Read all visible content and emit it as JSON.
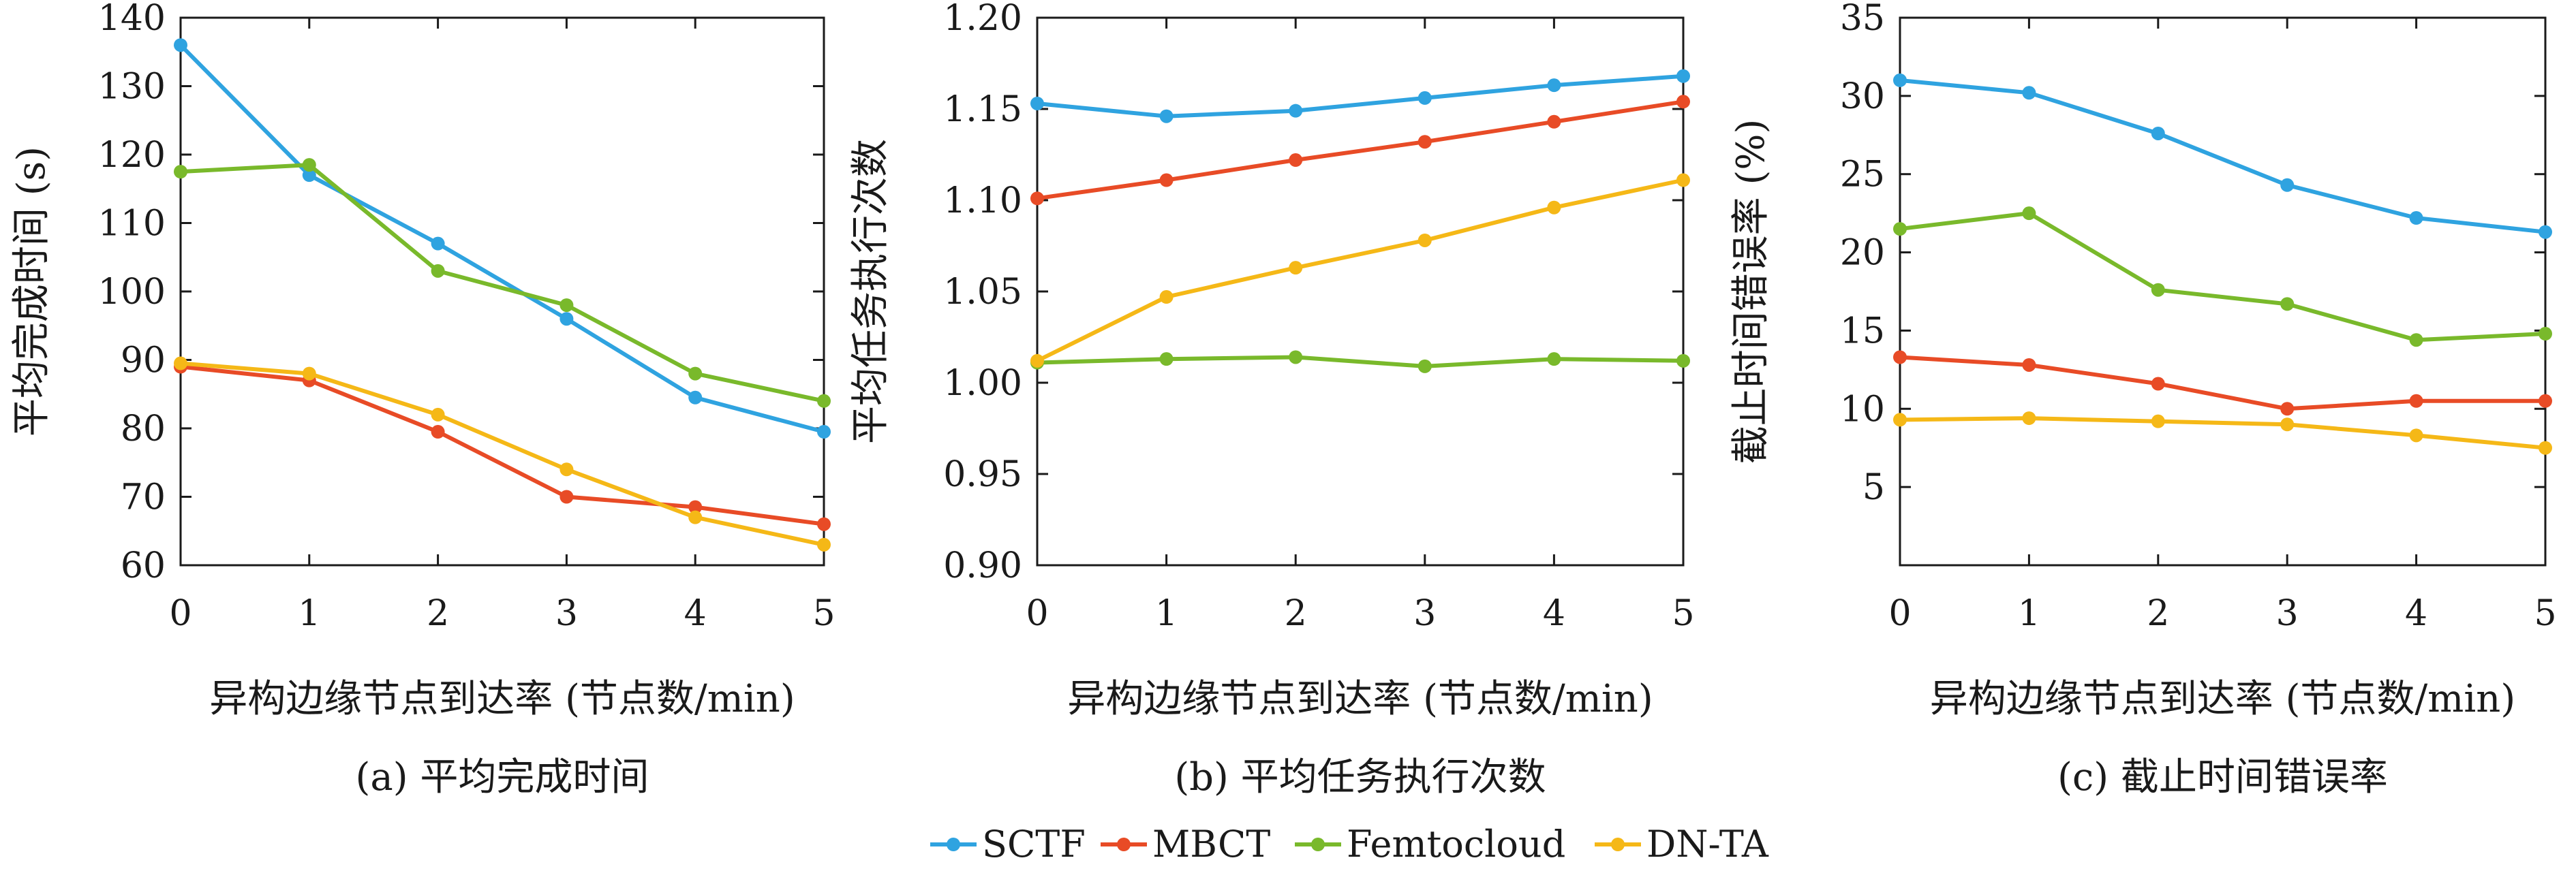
{
  "legend": [
    {
      "name": "SCTF",
      "color": "#2fa3e0"
    },
    {
      "name": "MBCT",
      "color": "#e84b26"
    },
    {
      "name": "Femtocloud",
      "color": "#79b92b"
    },
    {
      "name": "DN-TA",
      "color": "#f5b817"
    }
  ],
  "chart_data": [
    {
      "type": "line",
      "caption": "(a) 平均完成时间",
      "xlabel": "异构边缘节点到达率 (节点数/min)",
      "ylabel": "平均完成时间 (s)",
      "x": [
        0,
        1,
        2,
        3,
        4,
        5
      ],
      "xlim": [
        0,
        5
      ],
      "ylim": [
        60,
        140
      ],
      "yticks": [
        "60",
        "70",
        "80",
        "90",
        "100",
        "110",
        "120",
        "130",
        "140"
      ],
      "xticks": [
        "0",
        "1",
        "2",
        "3",
        "4",
        "5"
      ],
      "grid": false,
      "series": [
        {
          "name": "SCTF",
          "values": [
            136,
            117,
            107,
            96,
            84.5,
            79.5
          ]
        },
        {
          "name": "MBCT",
          "values": [
            89,
            87,
            79.5,
            70,
            68.5,
            66
          ]
        },
        {
          "name": "Femtocloud",
          "values": [
            117.5,
            118.5,
            103,
            98,
            88,
            84
          ]
        },
        {
          "name": "DN-TA",
          "values": [
            89.5,
            88,
            82,
            74,
            67,
            63
          ]
        }
      ]
    },
    {
      "type": "line",
      "caption": "(b) 平均任务执行次数",
      "xlabel": "异构边缘节点到达率 (节点数/min)",
      "ylabel": "平均任务执行次数",
      "x": [
        0,
        1,
        2,
        3,
        4,
        5
      ],
      "xlim": [
        0,
        5
      ],
      "ylim": [
        0.9,
        1.2
      ],
      "yticks": [
        "0.90",
        "0.95",
        "1.00",
        "1.05",
        "1.10",
        "1.15",
        "1.20"
      ],
      "xticks": [
        "0",
        "1",
        "2",
        "3",
        "4",
        "5"
      ],
      "grid": false,
      "series": [
        {
          "name": "SCTF",
          "values": [
            1.153,
            1.146,
            1.149,
            1.156,
            1.163,
            1.168
          ]
        },
        {
          "name": "MBCT",
          "values": [
            1.101,
            1.111,
            1.122,
            1.132,
            1.143,
            1.154
          ]
        },
        {
          "name": "Femtocloud",
          "values": [
            1.011,
            1.013,
            1.014,
            1.009,
            1.013,
            1.012
          ]
        },
        {
          "name": "DN-TA",
          "values": [
            1.012,
            1.047,
            1.063,
            1.078,
            1.096,
            1.111
          ]
        }
      ]
    },
    {
      "type": "line",
      "caption": "(c) 截止时间错误率",
      "xlabel": "异构边缘节点到达率 (节点数/min)",
      "ylabel": "截止时间错误率 (%)",
      "x": [
        0,
        1,
        2,
        3,
        4,
        5
      ],
      "xlim": [
        0,
        5
      ],
      "ylim": [
        0,
        35
      ],
      "yticks": [
        "5",
        "10",
        "15",
        "20",
        "25",
        "30",
        "35"
      ],
      "xticks": [
        "0",
        "1",
        "2",
        "3",
        "4",
        "5"
      ],
      "grid": false,
      "series": [
        {
          "name": "SCTF",
          "values": [
            31,
            30.2,
            27.6,
            24.3,
            22.2,
            21.3
          ]
        },
        {
          "name": "MBCT",
          "values": [
            13.3,
            12.8,
            11.6,
            10,
            10.5,
            10.5
          ]
        },
        {
          "name": "Femtocloud",
          "values": [
            21.5,
            22.5,
            17.6,
            16.7,
            14.4,
            14.8
          ]
        },
        {
          "name": "DN-TA",
          "values": [
            9.3,
            9.4,
            9.2,
            9,
            8.3,
            7.5
          ]
        }
      ]
    }
  ]
}
